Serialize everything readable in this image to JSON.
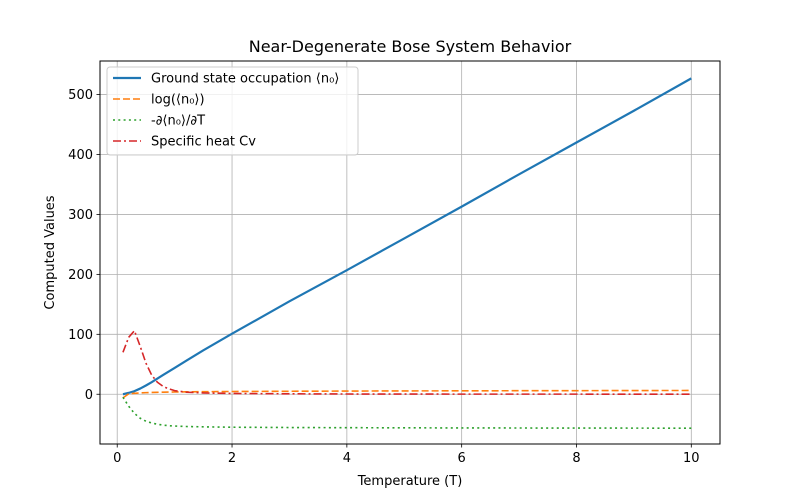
{
  "chart_data": {
    "type": "line",
    "title": "Near-Degenerate Bose System Behavior",
    "xlabel": "Temperature (T)",
    "ylabel": "Computed Values",
    "xlim": [
      -0.3,
      10.5
    ],
    "ylim": [
      -83,
      556
    ],
    "xticks": [
      0,
      2,
      4,
      6,
      8,
      10
    ],
    "yticks": [
      0,
      100,
      200,
      300,
      400,
      500
    ],
    "xtick_labels": [
      "0",
      "2",
      "4",
      "6",
      "8",
      "10"
    ],
    "ytick_labels": [
      "0",
      "100",
      "200",
      "300",
      "400",
      "500"
    ],
    "grid": true,
    "legend_position": "top-left",
    "x": [
      0.1,
      0.2,
      0.3,
      0.4,
      0.5,
      0.6,
      0.7,
      0.8,
      0.9,
      1.0,
      1.2,
      1.5,
      2,
      3,
      4,
      5,
      6,
      7,
      8,
      9,
      10
    ],
    "series": [
      {
        "name": "Ground state occupation ⟨n₀⟩",
        "color": "#1f77b4",
        "style": "solid",
        "values": [
          0.0,
          2.3,
          5.2,
          9.5,
          14.6,
          20.2,
          26.2,
          32.2,
          38.1,
          44.0,
          55.8,
          73.3,
          101,
          155,
          207,
          260,
          313,
          367,
          420,
          473,
          527
        ]
      },
      {
        "name": "log(⟨n₀⟩)",
        "color": "#ff7f0e",
        "style": "dashed",
        "values": [
          -6.0,
          0.8,
          1.6,
          2.2,
          2.7,
          3.0,
          3.3,
          3.5,
          3.6,
          3.8,
          4.0,
          4.3,
          4.6,
          5.0,
          5.3,
          5.6,
          5.7,
          5.9,
          6.0,
          6.2,
          6.3
        ]
      },
      {
        "name": "-∂⟨n₀⟩/∂T",
        "color": "#2ca02c",
        "style": "dotted",
        "values": [
          -5,
          -20,
          -32,
          -40,
          -45,
          -48,
          -50,
          -51.5,
          -52.5,
          -53,
          -53.8,
          -54.4,
          -55,
          -55.5,
          -55.8,
          -56,
          -56.2,
          -56.3,
          -56.4,
          -56.5,
          -56.6
        ]
      },
      {
        "name": "Specific heat Cv",
        "color": "#d62728",
        "style": "dashdot",
        "values": [
          70,
          95,
          106,
          80,
          52,
          32,
          20,
          13,
          9,
          6,
          3.5,
          2.2,
          1.3,
          0.7,
          0.4,
          0.3,
          0.2,
          0.2,
          0.2,
          0.1,
          0.1
        ]
      }
    ]
  }
}
